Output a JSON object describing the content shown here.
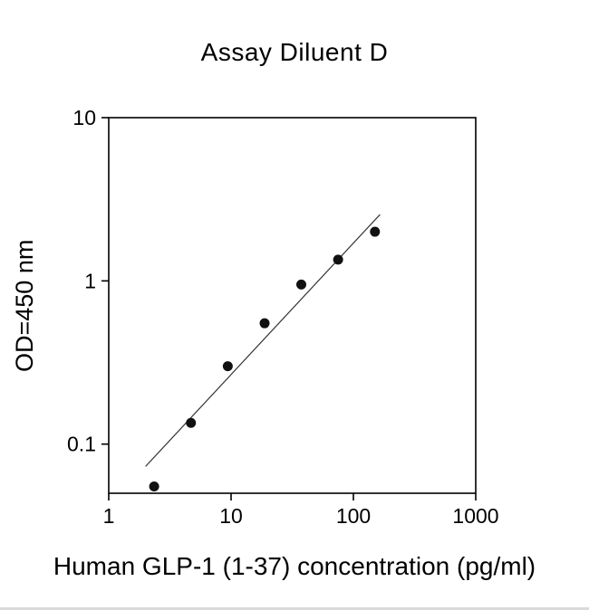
{
  "chart_data": {
    "type": "scatter",
    "title": "Assay Diluent D",
    "xlabel": "Human GLP-1 (1-37) concentration (pg/ml)",
    "ylabel": "OD=450 nm",
    "x_scale": "log",
    "y_scale": "log",
    "xlim": [
      1,
      1000
    ],
    "ylim": [
      0.05,
      10
    ],
    "x_ticks": [
      "1",
      "10",
      "100",
      "1000"
    ],
    "x_tick_values": [
      1,
      10,
      100,
      1000
    ],
    "y_ticks": [
      "0.1",
      "1",
      "10"
    ],
    "y_tick_values": [
      0.1,
      1,
      10
    ],
    "points": {
      "x": [
        2.35,
        4.7,
        9.4,
        18.8,
        37.5,
        75,
        150
      ],
      "y": [
        0.055,
        0.135,
        0.3,
        0.55,
        0.95,
        1.35,
        2.0
      ]
    },
    "fit_line": {
      "x1": 2.0,
      "y1": 0.073,
      "x2": 165,
      "y2": 2.55
    },
    "grid": false,
    "legend": null,
    "marker_color": "#111111",
    "line_color": "#333333",
    "axis_color": "#000000"
  }
}
